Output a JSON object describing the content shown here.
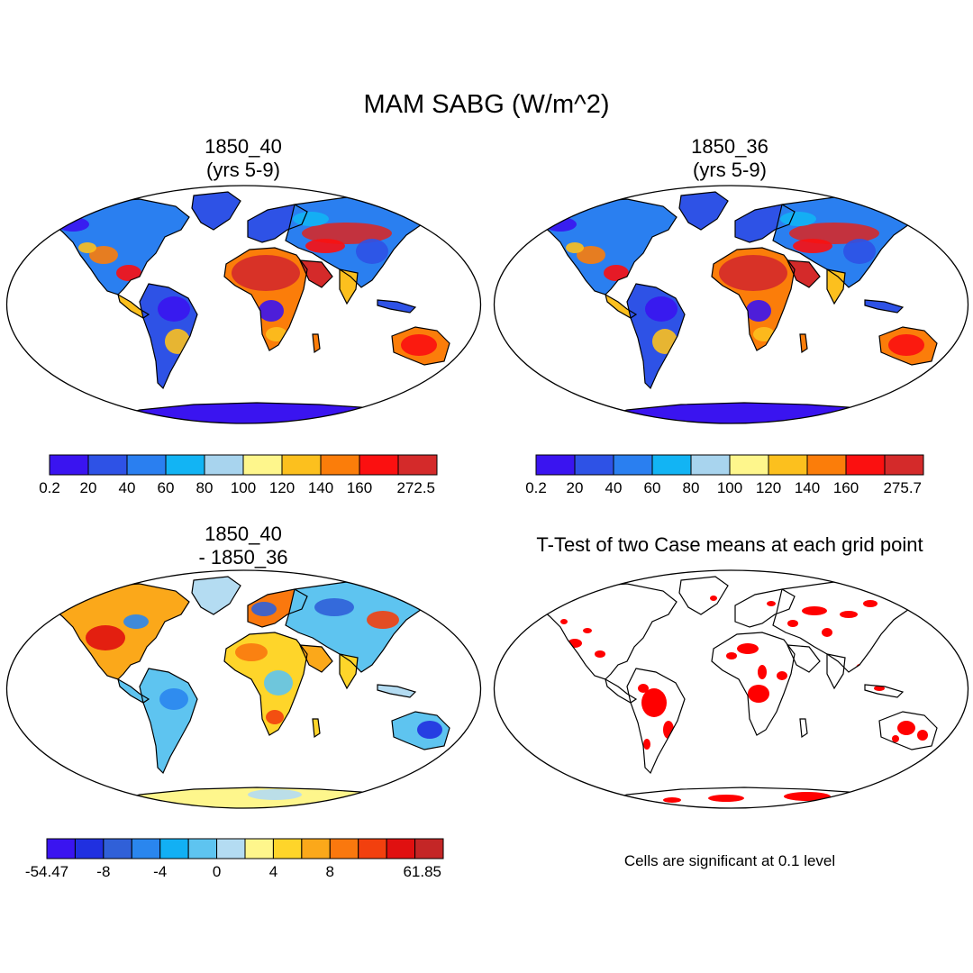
{
  "figure": {
    "title": "MAM SABG (W/m^2)",
    "note": "Cells are significant at 0.1 level"
  },
  "panels": [
    {
      "id": "case1",
      "title_lines": [
        "1850_40",
        "(yrs 5-9)"
      ],
      "kind": "field",
      "colorbar": {
        "colors": [
          "#3a14f0",
          "#2e52e6",
          "#2a7ff0",
          "#12b4f4",
          "#a8d4ee",
          "#fef68c",
          "#fcc01e",
          "#fb7d0a",
          "#fb1010",
          "#d42a2a"
        ],
        "labels": [
          "0.2",
          "20",
          "40",
          "60",
          "80",
          "100",
          "120",
          "140",
          "160",
          "272.5"
        ]
      }
    },
    {
      "id": "case2",
      "title_lines": [
        "1850_36",
        "(yrs 5-9)"
      ],
      "kind": "field",
      "colorbar": {
        "colors": [
          "#3a14f0",
          "#2e52e6",
          "#2a7ff0",
          "#12b4f4",
          "#a8d4ee",
          "#fef68c",
          "#fcc01e",
          "#fb7d0a",
          "#fb1010",
          "#d42a2a"
        ],
        "labels": [
          "0.2",
          "20",
          "40",
          "60",
          "80",
          "100",
          "120",
          "140",
          "160",
          "275.7"
        ]
      }
    },
    {
      "id": "difference",
      "title_lines": [
        "1850_40",
        "- 1850_36"
      ],
      "kind": "difference",
      "colorbar": {
        "colors": [
          "#3a14f0",
          "#2030e0",
          "#3060d8",
          "#2a86ee",
          "#12b0f4",
          "#5ec4f0",
          "#b4dcf2",
          "#fef68c",
          "#fed52a",
          "#fba81a",
          "#fa780e",
          "#f2400e",
          "#e01010",
          "#c42626"
        ],
        "labels": [
          "-54.47",
          "",
          "-8",
          "",
          "-4",
          "",
          "0",
          "",
          "4",
          "",
          "8",
          "",
          "",
          "61.85"
        ]
      }
    },
    {
      "id": "ttest",
      "title_lines": [
        "T-Test of two Case means at each grid point"
      ],
      "kind": "significance"
    }
  ]
}
